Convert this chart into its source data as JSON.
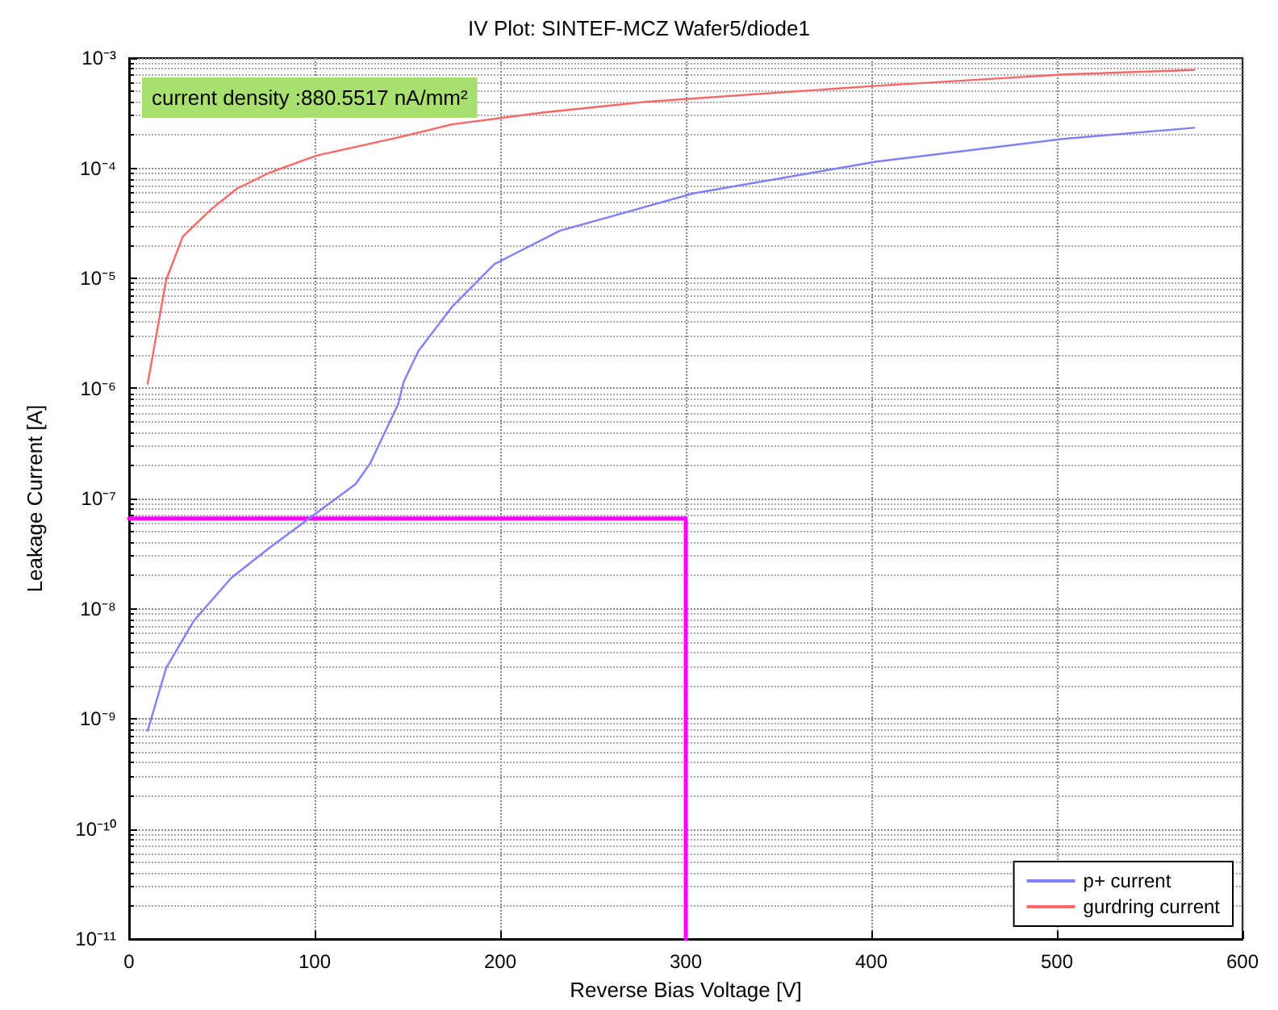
{
  "chart_data": {
    "type": "line",
    "title": "IV Plot: SINTEF-MCZ Wafer5/diode1",
    "xlabel": "Reverse Bias Voltage [V]",
    "ylabel": "Leakage Current [A]",
    "annotations": [
      "current density :880.5517 nA/mm²"
    ],
    "log": "y",
    "grid": true,
    "legend": "bottom right",
    "marker": "none",
    "line_style": "solid",
    "xlim": [
      0,
      600
    ],
    "xticks": [
      0,
      100,
      200,
      300,
      400,
      500,
      600
    ],
    "ylim": [
      1e-11,
      0.001
    ],
    "yticks": [
      {
        "value": 1e-11,
        "label": "10⁻¹¹"
      },
      {
        "value": 1e-10,
        "label": "10⁻¹⁰"
      },
      {
        "value": 1e-09,
        "label": "10⁻⁹"
      },
      {
        "value": 1e-08,
        "label": "10⁻⁸"
      },
      {
        "value": 1e-07,
        "label": "10⁻⁷"
      },
      {
        "value": 1e-06,
        "label": "10⁻⁶"
      },
      {
        "value": 1e-05,
        "label": "10⁻⁵"
      },
      {
        "value": 0.0001,
        "label": "10⁻⁴"
      },
      {
        "value": 0.001,
        "label": "10⁻³"
      }
    ],
    "series": [
      {
        "name": "p+ current",
        "color": "#7f7fff",
        "x": [
          10,
          20,
          35,
          55,
          75,
          100,
          122,
          130,
          145,
          148,
          156,
          174,
          197,
          232,
          304,
          403,
          504,
          574
        ],
        "values": [
          7.8e-10,
          2.9e-09,
          7.8e-09,
          1.9e-08,
          3.5e-08,
          7.2e-08,
          1.35e-07,
          2.1e-07,
          7.2e-07,
          1.15e-06,
          2.2e-06,
          5.5e-06,
          1.35e-05,
          2.7e-05,
          5.9e-05,
          0.000115,
          0.000185,
          0.000233
        ]
      },
      {
        "name": "gurdring current",
        "color": "#ff6666",
        "x": [
          10,
          20,
          29,
          44,
          58,
          75,
          101,
          145,
          174,
          223,
          278,
          403,
          504,
          574
        ],
        "values": [
          1.1e-06,
          9.7e-06,
          2.4e-05,
          4.2e-05,
          6.5e-05,
          9e-05,
          0.00013,
          0.00019,
          0.00025,
          0.00032,
          0.0004,
          0.00056,
          0.00071,
          0.00078
        ]
      },
      {
        "color": "#ff00ff",
        "x": [
          0,
          300,
          300
        ],
        "values": [
          6.6e-08,
          6.6e-08,
          1e-11
        ]
      }
    ]
  }
}
